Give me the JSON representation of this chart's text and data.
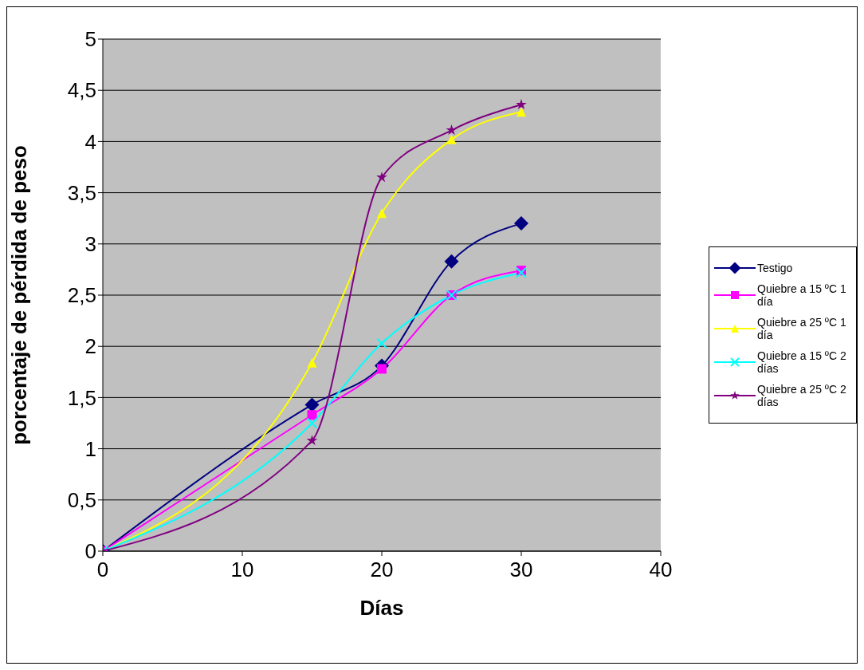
{
  "chart_data": {
    "type": "line",
    "xlabel": "Días",
    "ylabel": "porcentaje de pérdida de peso",
    "x": [
      0,
      15,
      20,
      25,
      30
    ],
    "xlim": [
      0,
      40
    ],
    "xticks": [
      0,
      10,
      20,
      30,
      40
    ],
    "ylim": [
      0,
      5
    ],
    "yticks": [
      0,
      {
        "value": 0.5,
        "label": "0,5"
      },
      1,
      {
        "value": 1.5,
        "label": "1,5"
      },
      2,
      {
        "value": 2.5,
        "label": "2,5"
      },
      3,
      {
        "value": 3.5,
        "label": "3,5"
      },
      4,
      {
        "value": 4.5,
        "label": "4,5"
      },
      5
    ],
    "grid": "y",
    "legend": "right",
    "line_style": "solid",
    "series": [
      {
        "name": "Testigo",
        "color": "#000080",
        "marker": "diamond",
        "values": [
          0,
          1.43,
          1.81,
          2.83,
          3.2
        ]
      },
      {
        "name": "Quiebre a 15 ºC 1 día",
        "color": "#ff00ff",
        "marker": "square",
        "values": [
          0,
          1.33,
          1.78,
          2.5,
          2.74
        ]
      },
      {
        "name": "Quiebre a 25 ºC 1 día",
        "color": "#ffff00",
        "marker": "triangle",
        "values": [
          0,
          1.84,
          3.3,
          4.02,
          4.29
        ]
      },
      {
        "name": "Quiebre a 15 ºC  2 días",
        "color": "#00ffff",
        "marker": "cross",
        "values": [
          0,
          1.25,
          2.03,
          2.5,
          2.72
        ]
      },
      {
        "name": "Quiebre a 25 ºC 2 días",
        "color": "#800080",
        "marker": "star",
        "values": [
          0,
          1.08,
          3.65,
          4.11,
          4.36
        ]
      }
    ]
  }
}
